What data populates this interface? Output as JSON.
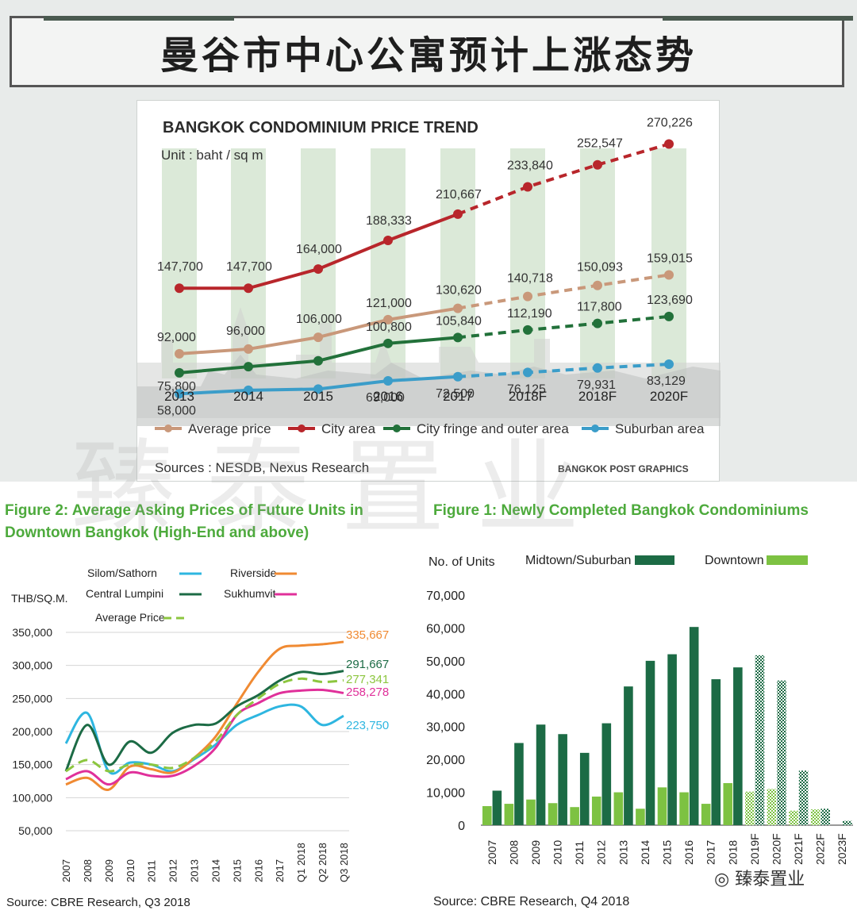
{
  "page": {
    "main_title": "曼谷市中心公寓预计上涨态势",
    "watermark": "臻泰置业",
    "footer_brand": "臻泰置业"
  },
  "chart_data": [
    {
      "type": "line",
      "title": "BANGKOK CONDOMINIUM PRICE TREND",
      "unit_label": "Unit : baht / sq m",
      "source": "Sources : NESDB, Nexus Research",
      "credit": "BANGKOK POST GRAPHICS",
      "categories": [
        "2013",
        "2014",
        "2015",
        "2016",
        "2017",
        "2018F",
        "2018F",
        "2020F"
      ],
      "series": [
        {
          "name": "Average price",
          "color": "#c9987a",
          "values": [
            92000,
            96000,
            106000,
            121000,
            130620,
            140718,
            150093,
            159015
          ],
          "labels": [
            "92,000",
            "96,000",
            "106,000",
            "121,000",
            "130,620",
            "140,718",
            "150,093",
            "159,015"
          ]
        },
        {
          "name": "City area",
          "color": "#b8262b",
          "values": [
            147700,
            147700,
            164000,
            188333,
            210667,
            233840,
            252547,
            270226
          ],
          "labels": [
            "147,700",
            "147,700",
            "164,000",
            "188,333",
            "210,667",
            "233,840",
            "252,547",
            "270,226"
          ]
        },
        {
          "name": "City fringe and outer area",
          "color": "#22713a",
          "values": [
            75800,
            81000,
            86000,
            100800,
            105840,
            112190,
            117800,
            123690
          ],
          "labels": [
            "75,800",
            null,
            null,
            "100,800",
            "105,840",
            "112,190",
            "117,800",
            "123,690"
          ]
        },
        {
          "name": "Suburban area",
          "color": "#3b9dc9",
          "values": [
            58000,
            61000,
            62000,
            69000,
            72500,
            76125,
            79931,
            83129
          ],
          "labels": [
            "58,000",
            null,
            null,
            "69,000",
            "72,500",
            "76,125",
            "79,931",
            "83,129"
          ]
        }
      ],
      "forecast_from_index": 4,
      "ylim": [
        40000,
        280000
      ]
    },
    {
      "type": "line",
      "title_line1": "Figure 2: Average Asking Prices of Future Units in",
      "title_line2": "Downtown Bangkok (High-End and above)",
      "ylabel": "THB/SQ.M.",
      "source": "Source: CBRE Research, Q3 2018",
      "categories": [
        "2007",
        "2008",
        "2009",
        "2010",
        "2011",
        "2012",
        "2013",
        "2014",
        "2015",
        "2016",
        "2017",
        "Q1 2018",
        "Q2 2018",
        "Q3 2018"
      ],
      "yticks": [
        "350,000",
        "300,000",
        "250,000",
        "200,000",
        "150,000",
        "100,000",
        "50,000"
      ],
      "ylim": [
        50000,
        350000
      ],
      "series": [
        {
          "name": "Silom/Sathorn",
          "color": "#2eb6e0",
          "dashed": false,
          "values": [
            182000,
            228000,
            140000,
            153000,
            150000,
            140000,
            158000,
            180000,
            210000,
            225000,
            238000,
            238000,
            210000,
            223750
          ],
          "end_label": "223,750"
        },
        {
          "name": "Riverside",
          "color": "#f08a32",
          "dashed": false,
          "values": [
            120000,
            130000,
            112000,
            147000,
            143000,
            138000,
            160000,
            192000,
            242000,
            290000,
            325000,
            330000,
            332000,
            335667
          ],
          "end_label": "335,667"
        },
        {
          "name": "Central Lumpini",
          "color": "#1c6b45",
          "dashed": false,
          "values": [
            140000,
            210000,
            150000,
            185000,
            168000,
            198000,
            210000,
            212000,
            238000,
            255000,
            277000,
            290000,
            287000,
            291667
          ],
          "end_label": "291,667"
        },
        {
          "name": "Sukhumvit",
          "color": "#e0309a",
          "dashed": false,
          "values": [
            128000,
            140000,
            120000,
            138000,
            133000,
            133000,
            148000,
            175000,
            225000,
            243000,
            258000,
            262000,
            263000,
            258278
          ],
          "end_label": "258,278"
        },
        {
          "name": "Average Price",
          "color": "#8cc63f",
          "dashed": true,
          "values": [
            140000,
            157000,
            140000,
            150000,
            150000,
            145000,
            160000,
            185000,
            225000,
            250000,
            272000,
            280000,
            275000,
            277341
          ],
          "end_label": "277,341"
        }
      ]
    },
    {
      "type": "bar",
      "title": "Figure 1: Newly Completed Bangkok Condominiums",
      "ylabel": "No. of Units",
      "source": "Source: CBRE Research, Q4 2018",
      "categories": [
        "2007",
        "2008",
        "2009",
        "2010",
        "2011",
        "2012",
        "2013",
        "2014",
        "2015",
        "2016",
        "2017",
        "2018",
        "2019F",
        "2020F",
        "2021F",
        "2022F",
        "2023F"
      ],
      "forecast_from_index": 12,
      "yticks": [
        "70,000",
        "60,000",
        "50,000",
        "40,000",
        "30,000",
        "20,000",
        "10,000",
        "0"
      ],
      "ylim": [
        0,
        70000
      ],
      "series": [
        {
          "name": "Downtown",
          "color": "#7dc242",
          "values": [
            5800,
            6500,
            7800,
            6700,
            5500,
            8700,
            10000,
            5000,
            11500,
            10000,
            6500,
            12800,
            10200,
            11000,
            4400,
            4800,
            0
          ]
        },
        {
          "name": "Midtown/Suburban",
          "color": "#1c6b45",
          "values": [
            10500,
            25000,
            30600,
            27700,
            22000,
            31000,
            42200,
            50000,
            52000,
            60300,
            44400,
            48000,
            51700,
            44000,
            16600,
            5000,
            1300
          ]
        }
      ]
    }
  ]
}
